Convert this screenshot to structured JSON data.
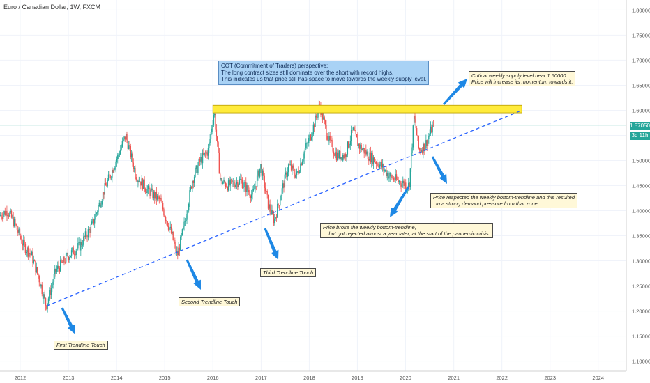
{
  "header": {
    "title": "Euro / Canadian Dollar, 1W, FXCM"
  },
  "last_price": {
    "value": "1.57050",
    "countdown": "3d 11h"
  },
  "colors": {
    "up": "#26a69a",
    "down": "#ef5350",
    "zone": "#ffeb3b",
    "trend": "#2962ff",
    "arrow": "#1e88e5",
    "price_line": "#26a69a"
  },
  "chart_data": {
    "type": "candlestick",
    "symbol": "EURCAD",
    "interval": "1W",
    "ylim": [
      1.08,
      1.82
    ],
    "xlim": [
      "2011-08-01",
      "2024-08-01"
    ],
    "x_ticks": [
      "2012",
      "2013",
      "2014",
      "2015",
      "2016",
      "2017",
      "2018",
      "2019",
      "2020",
      "2021",
      "2022",
      "2023",
      "2024"
    ],
    "y_ticks": [
      "1.10000",
      "1.15000",
      "1.20000",
      "1.25000",
      "1.30000",
      "1.35000",
      "1.40000",
      "1.45000",
      "1.50000",
      "1.55000",
      "1.60000",
      "1.65000",
      "1.70000",
      "1.75000",
      "1.80000"
    ],
    "price_path": [
      [
        "2011-08-01",
        1.39
      ],
      [
        "2011-10-01",
        1.4
      ],
      [
        "2011-12-01",
        1.37
      ],
      [
        "2012-02-01",
        1.33
      ],
      [
        "2012-04-01",
        1.31
      ],
      [
        "2012-06-01",
        1.26
      ],
      [
        "2012-07-20",
        1.21
      ],
      [
        "2012-10-01",
        1.28
      ],
      [
        "2013-01-01",
        1.31
      ],
      [
        "2013-04-01",
        1.33
      ],
      [
        "2013-07-01",
        1.37
      ],
      [
        "2013-10-01",
        1.44
      ],
      [
        "2014-01-01",
        1.5
      ],
      [
        "2014-03-15",
        1.55
      ],
      [
        "2014-06-01",
        1.47
      ],
      [
        "2014-09-01",
        1.44
      ],
      [
        "2014-12-01",
        1.42
      ],
      [
        "2015-03-01",
        1.35
      ],
      [
        "2015-04-10",
        1.31
      ],
      [
        "2015-06-01",
        1.37
      ],
      [
        "2015-08-01",
        1.46
      ],
      [
        "2015-10-01",
        1.5
      ],
      [
        "2015-12-01",
        1.52
      ],
      [
        "2016-01-15",
        1.6
      ],
      [
        "2016-03-01",
        1.46
      ],
      [
        "2016-05-01",
        1.45
      ],
      [
        "2016-08-01",
        1.46
      ],
      [
        "2016-11-01",
        1.43
      ],
      [
        "2017-01-01",
        1.49
      ],
      [
        "2017-03-01",
        1.41
      ],
      [
        "2017-04-15",
        1.38
      ],
      [
        "2017-06-01",
        1.43
      ],
      [
        "2017-08-01",
        1.49
      ],
      [
        "2017-10-01",
        1.47
      ],
      [
        "2017-12-01",
        1.52
      ],
      [
        "2018-01-15",
        1.55
      ],
      [
        "2018-03-25",
        1.61
      ],
      [
        "2018-06-01",
        1.54
      ],
      [
        "2018-08-01",
        1.51
      ],
      [
        "2018-10-01",
        1.51
      ],
      [
        "2018-12-01",
        1.56
      ],
      [
        "2019-01-15",
        1.53
      ],
      [
        "2019-04-01",
        1.51
      ],
      [
        "2019-07-01",
        1.49
      ],
      [
        "2019-09-01",
        1.47
      ],
      [
        "2019-11-01",
        1.46
      ],
      [
        "2020-02-01",
        1.45
      ],
      [
        "2020-03-10",
        1.59
      ],
      [
        "2020-04-15",
        1.52
      ],
      [
        "2020-06-01",
        1.53
      ],
      [
        "2020-08-01",
        1.5705
      ]
    ],
    "supply_zone": {
      "from": "2016-01-01",
      "to": "2022-06-01",
      "low": 1.595,
      "high": 1.61
    },
    "trendline": {
      "from": [
        "2012-07-20",
        1.21
      ],
      "to": [
        "2022-06-01",
        1.6
      ]
    },
    "annotations": [
      {
        "name": "cot-note",
        "style": "cot",
        "text": "COT (Commitment of Traders) perspective:\nThe long contract sizes still dominate over the short with record highs.\nThis indicates us that price still has space to move towards the weekly supply level."
      },
      {
        "name": "supply-note",
        "style": "note",
        "text": "Critical weekly supply level near 1.60000:\nPrice will increase its momentum towards it."
      },
      {
        "name": "respect-note",
        "style": "note",
        "text": "Price respected the weekly bottom-trendline and this resulted\n  in a strong demand pressure from that zone."
      },
      {
        "name": "break-note",
        "style": "note",
        "text": "Price broke the weekly bottom-trendline,\n    but got rejected almost a year later, at the start of the pandemic crisis."
      },
      {
        "name": "third-touch-note",
        "style": "note",
        "text": "Third Trendline Touch"
      },
      {
        "name": "second-touch-note",
        "style": "note",
        "text": "Second Trendline Touch"
      },
      {
        "name": "first-touch-note",
        "style": "note",
        "text": "First Trendline Touch"
      }
    ]
  }
}
